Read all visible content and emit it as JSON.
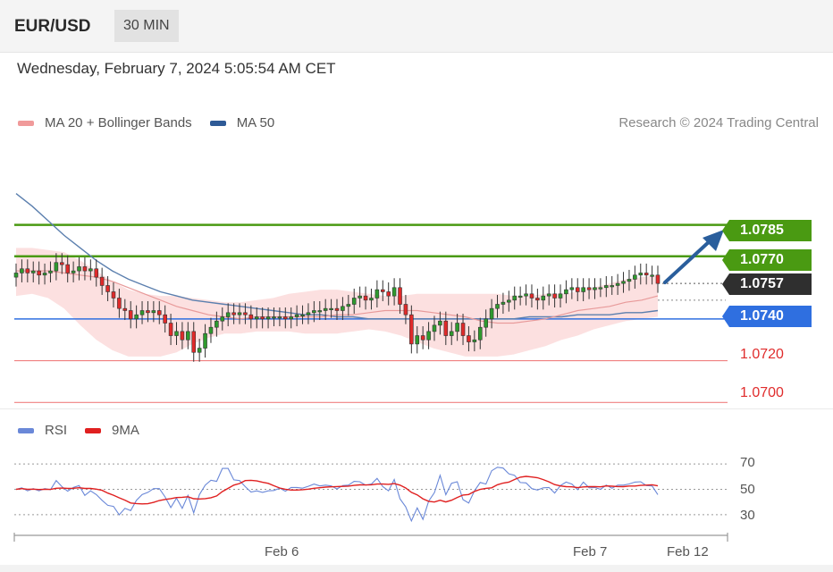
{
  "header": {
    "symbol": "EUR/USD",
    "timeframe": "30 MIN"
  },
  "datetime": "Wednesday, February 7, 2024 5:05:54 AM CET",
  "legend": {
    "ma20": "MA 20 + Bollinger Bands",
    "ma50": "MA 50",
    "rsi": "RSI",
    "ma9": "9MA"
  },
  "credit": "Research © 2024 Trading Central",
  "colors": {
    "green": "#4a9a12",
    "blue": "#2f6fe0",
    "red": "#e23a3a",
    "ma20": "#e89a9a",
    "ma50": "#5b7fae",
    "band": "#fbdada",
    "current": "#2f2f2f",
    "arrow": "#2a5e9c",
    "rsi": "#6a88d8",
    "ma9": "#e02020"
  },
  "chart_data": {
    "type": "candlestick",
    "x_labels": [
      "Feb 6",
      "Feb 7",
      "Feb 12"
    ],
    "levels": [
      {
        "value": "1.0785",
        "kind": "resistance"
      },
      {
        "value": "1.0770",
        "kind": "resistance"
      },
      {
        "value": "1.0757",
        "kind": "current"
      },
      {
        "value": "1.0740",
        "kind": "support"
      },
      {
        "value": "1.0720",
        "kind": "support"
      },
      {
        "value": "1.0700",
        "kind": "support"
      }
    ],
    "ylim": [
      1.069,
      1.081
    ],
    "closes": [
      1.0762,
      1.0764,
      1.0762,
      1.0763,
      1.0761,
      1.0762,
      1.0763,
      1.0767,
      1.0766,
      1.0762,
      1.0763,
      1.0765,
      1.0763,
      1.0764,
      1.076,
      1.0756,
      1.0753,
      1.075,
      1.0745,
      1.0744,
      1.074,
      1.0742,
      1.0744,
      1.0743,
      1.0744,
      1.0742,
      1.0738,
      1.0732,
      1.0734,
      1.073,
      1.0734,
      1.0724,
      1.0726,
      1.0733,
      1.0736,
      1.0739,
      1.0741,
      1.0743,
      1.0742,
      1.0743,
      1.0742,
      1.074,
      1.0741,
      1.074,
      1.0741,
      1.0741,
      1.0741,
      1.074,
      1.0741,
      1.0742,
      1.0742,
      1.0743,
      1.0744,
      1.0744,
      1.0745,
      1.0745,
      1.0744,
      1.0746,
      1.0747,
      1.075,
      1.0751,
      1.0749,
      1.075,
      1.0754,
      1.0753,
      1.0751,
      1.0755,
      1.0747,
      1.0742,
      1.0728,
      1.0732,
      1.073,
      1.0734,
      1.0737,
      1.0739,
      1.0732,
      1.0734,
      1.0738,
      1.0732,
      1.0729,
      1.073,
      1.0736,
      1.074,
      1.0745,
      1.0747,
      1.0748,
      1.0749,
      1.0751,
      1.0751,
      1.0752,
      1.075,
      1.0749,
      1.0751,
      1.0752,
      1.075,
      1.0752,
      1.0754,
      1.0755,
      1.0753,
      1.0755,
      1.0754,
      1.0755,
      1.0755,
      1.0756,
      1.0756,
      1.0757,
      1.0758,
      1.0759,
      1.0761,
      1.0762,
      1.0761,
      1.0761,
      1.0757
    ],
    "ma20": [
      1.0763,
      1.0763,
      1.0763,
      1.0762,
      1.0761,
      1.076,
      1.0758,
      1.0755,
      1.0752,
      1.0749,
      1.0746,
      1.0744,
      1.0742,
      1.0741,
      1.074,
      1.0741,
      1.0741,
      1.0741,
      1.0741,
      1.0741,
      1.0742,
      1.0742,
      1.0743,
      1.0744,
      1.0744,
      1.0744,
      1.0743,
      1.0742,
      1.0741,
      1.0739,
      1.0738,
      1.0738,
      1.0739,
      1.074,
      1.0742,
      1.0744,
      1.0745,
      1.0746,
      1.0748,
      1.0749,
      1.0751
    ],
    "ma50": [
      1.08,
      1.0794,
      1.0787,
      1.078,
      1.0774,
      1.0768,
      1.0763,
      1.0759,
      1.0756,
      1.0753,
      1.0751,
      1.0749,
      1.0748,
      1.0747,
      1.0746,
      1.0745,
      1.0744,
      1.0743,
      1.0742,
      1.0742,
      1.0741,
      1.0741,
      1.074,
      1.074,
      1.074,
      1.074,
      1.074,
      1.074,
      1.074,
      1.074,
      1.074,
      1.074,
      1.0741,
      1.0741,
      1.0741,
      1.0742,
      1.0742,
      1.0742,
      1.0743,
      1.0743,
      1.0744
    ],
    "bb_upper": [
      1.0774,
      1.0774,
      1.0773,
      1.0772,
      1.0768,
      1.0763,
      1.0758,
      1.0754,
      1.0752,
      1.0751,
      1.0751,
      1.075,
      1.0749,
      1.0748,
      1.0748,
      1.0749,
      1.075,
      1.0752,
      1.0753,
      1.0754,
      1.0754,
      1.0753,
      1.0752,
      1.0751,
      1.0751,
      1.0752,
      1.0752,
      1.0752,
      1.0752,
      1.0752,
      1.0752,
      1.0751,
      1.0751,
      1.0752,
      1.0752,
      1.0753,
      1.0755,
      1.0757,
      1.0759,
      1.076,
      1.0761
    ],
    "bb_lower": [
      1.0751,
      1.0752,
      1.075,
      1.0745,
      1.0737,
      1.073,
      1.0725,
      1.0722,
      1.0722,
      1.0722,
      1.0724,
      1.0728,
      1.0731,
      1.0733,
      1.0733,
      1.0734,
      1.0734,
      1.0734,
      1.0733,
      1.0733,
      1.0733,
      1.0734,
      1.0735,
      1.0734,
      1.0732,
      1.0729,
      1.0726,
      1.0724,
      1.0722,
      1.0722,
      1.0722,
      1.0723,
      1.0725,
      1.0727,
      1.073,
      1.0732,
      1.0735,
      1.0737,
      1.0739,
      1.074,
      1.0741
    ],
    "rsi": {
      "ticks": [
        "70",
        "50",
        "30"
      ],
      "ylim": [
        20,
        80
      ],
      "current": 54
    }
  }
}
